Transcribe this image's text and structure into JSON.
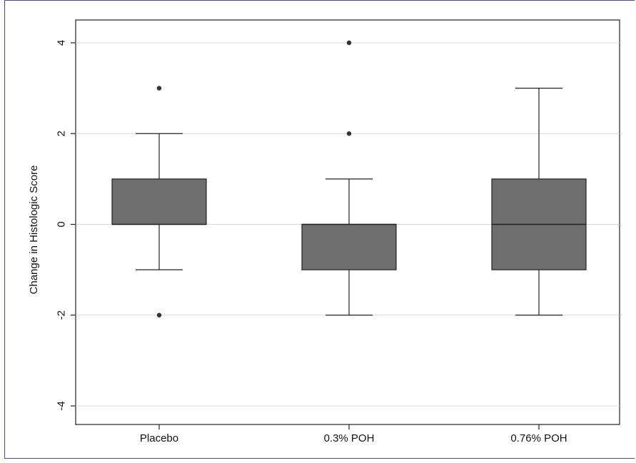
{
  "chart_data": {
    "type": "box",
    "title": "",
    "xlabel": "",
    "ylabel": "Change in Histologic Score",
    "ylim": [
      -4.5,
      4.6
    ],
    "yticks": [
      4,
      2,
      0,
      -2,
      -4
    ],
    "ytick_labels": [
      "4",
      "2",
      "0",
      "-2",
      "-4"
    ],
    "grid": true,
    "categories": [
      "Placebo",
      "0.3% POH",
      "0.76% POH"
    ],
    "boxes": [
      {
        "category": "Placebo",
        "whisker_low": -1,
        "q1": 0,
        "median": 0,
        "q3": 1,
        "whisker_high": 2,
        "outliers": [
          3,
          -2
        ]
      },
      {
        "category": "0.3% POH",
        "whisker_low": -2,
        "q1": -1,
        "median": 0,
        "q3": 0,
        "whisker_high": 1,
        "outliers": [
          4,
          2
        ]
      },
      {
        "category": "0.76% POH",
        "whisker_low": -2,
        "q1": -1,
        "median": 0,
        "q3": 1,
        "whisker_high": 3,
        "outliers": []
      }
    ],
    "colors": {
      "box_fill": "#6e6e6e",
      "stroke": "#222222",
      "grid": "#d9d9d9",
      "outlier": "#333333"
    }
  }
}
